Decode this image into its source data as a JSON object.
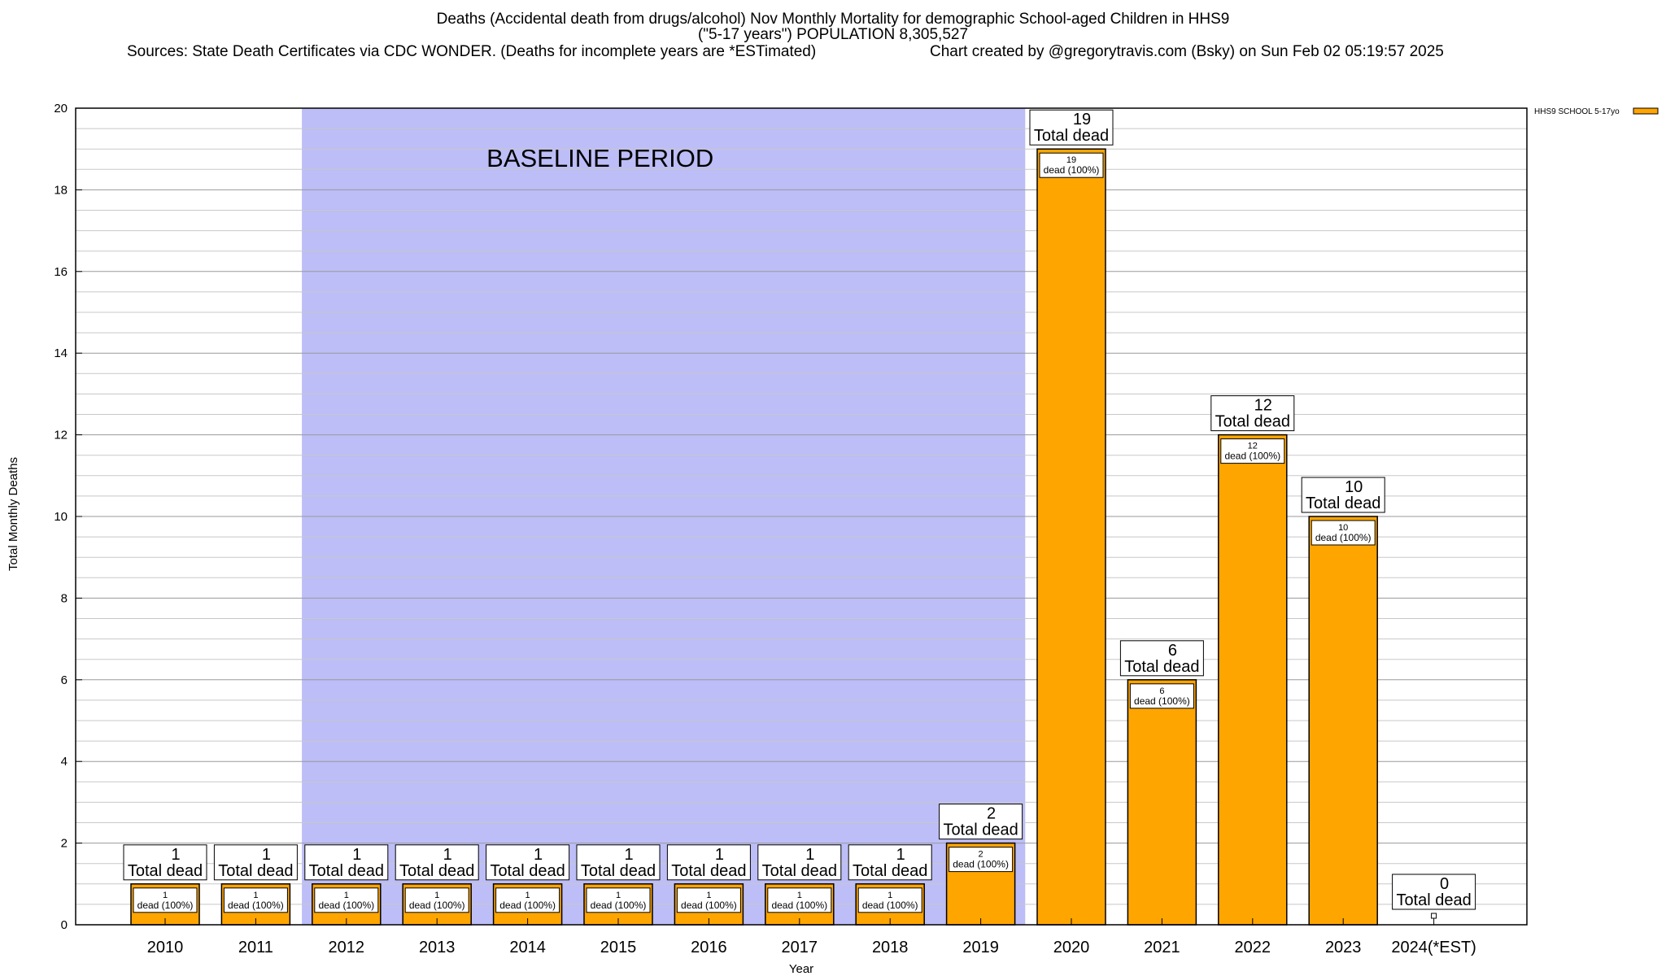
{
  "header": {
    "title_line1": "Deaths (Accidental death from drugs/alcohol) Nov Monthly Mortality for demographic School-aged Children in HHS9",
    "title_line2": "(\"5-17 years\") POPULATION 8,305,527",
    "sources": "Sources: State Death Certificates via CDC WONDER. (Deaths for incomplete years are *ESTimated)",
    "credit": "Chart created by @gregorytravis.com (Bsky) on Sun Feb 02 05:19:57 2025"
  },
  "chart_data": {
    "type": "bar",
    "title": "Deaths (Accidental death from drugs/alcohol) Nov Monthly Mortality for demographic School-aged Children in HHS9",
    "xlabel": "Year",
    "ylabel": "Total Monthly Deaths",
    "categories": [
      "2010",
      "2011",
      "2012",
      "2013",
      "2014",
      "2015",
      "2016",
      "2017",
      "2018",
      "2019",
      "2020",
      "2021",
      "2022",
      "2023",
      "2024(*EST)"
    ],
    "series": [
      {
        "name": "HHS9 SCHOOL 5-17yo",
        "values": [
          1,
          1,
          1,
          1,
          1,
          1,
          1,
          1,
          1,
          2,
          19,
          6,
          12,
          10,
          0
        ]
      }
    ],
    "ylim": [
      0,
      20
    ],
    "yticks": [
      0,
      2,
      4,
      6,
      8,
      10,
      12,
      14,
      16,
      18,
      20
    ],
    "grid": true,
    "legend_position": "top-right",
    "total_label_suffix": "Total dead",
    "inner_label_suffix": "dead (100%)",
    "baseline": {
      "label": "BASELINE PERIOD",
      "start_category": "2012",
      "end_category": "2019",
      "color": "#bdbdf7"
    },
    "bar_color": "#ffa500",
    "bar_edge_color": "#000000"
  }
}
